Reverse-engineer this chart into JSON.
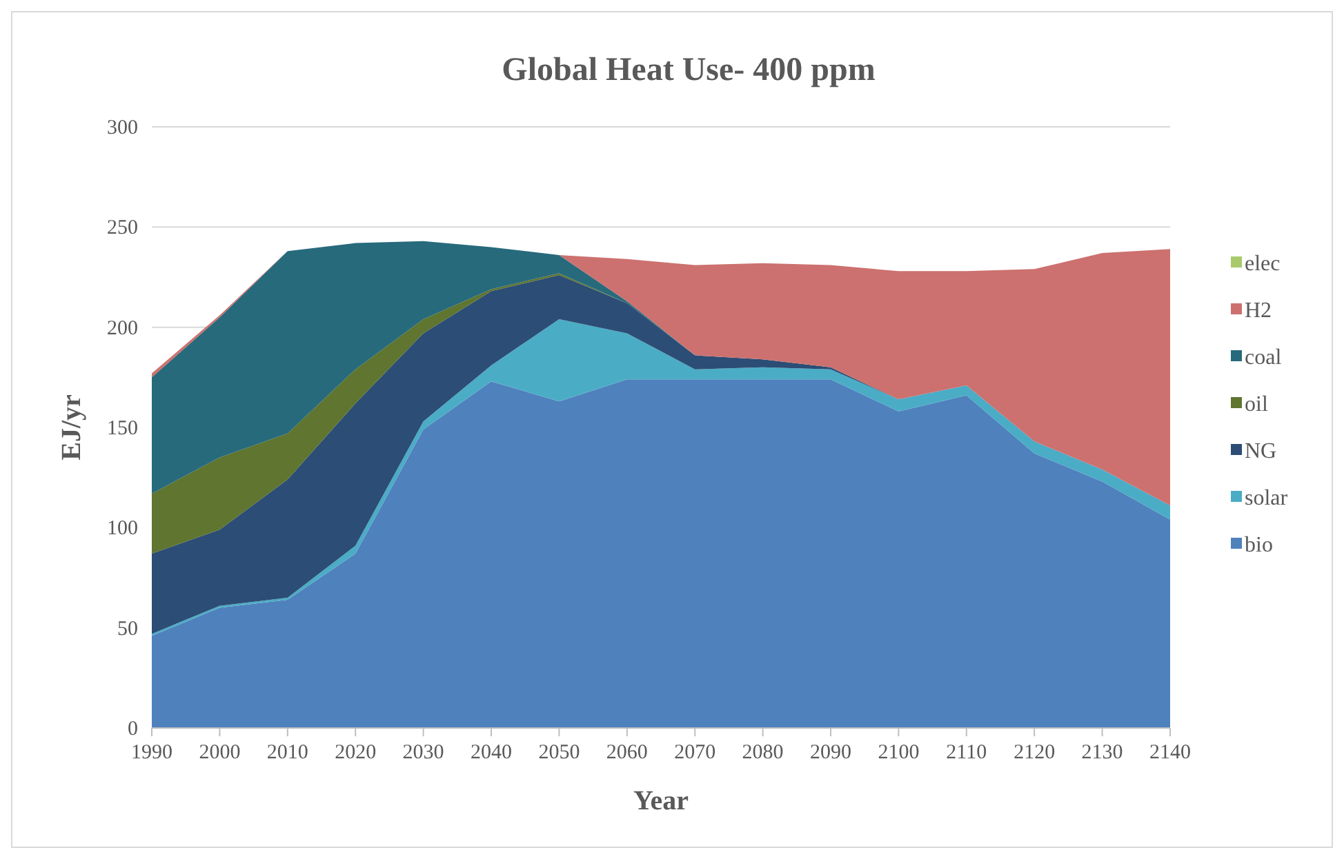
{
  "chart_data": {
    "type": "area",
    "title": "Global Heat Use- 400 ppm",
    "xlabel": "Year",
    "ylabel": "EJ/yr",
    "x": [
      1990,
      2000,
      2010,
      2020,
      2030,
      2040,
      2050,
      2060,
      2070,
      2080,
      2090,
      2100,
      2110,
      2120,
      2130,
      2140
    ],
    "stacked": true,
    "grid": "y",
    "legend": "right",
    "xlim": [
      1990,
      2140
    ],
    "xticks": [
      1990,
      2000,
      2010,
      2020,
      2030,
      2040,
      2050,
      2060,
      2070,
      2080,
      2090,
      2100,
      2110,
      2120,
      2130,
      2140
    ],
    "ylim": [
      0,
      300
    ],
    "yticks": [
      0,
      50,
      100,
      150,
      200,
      250,
      300
    ],
    "series": [
      {
        "name": "bio",
        "color": "#4f81bd",
        "values": [
          46,
          60,
          64,
          87,
          149,
          173,
          163,
          174,
          174,
          174,
          174,
          158,
          166,
          137,
          123,
          104
        ]
      },
      {
        "name": "solar",
        "color": "#4bacc6",
        "values": [
          1,
          1,
          1,
          4,
          4,
          8,
          41,
          23,
          5,
          6,
          5,
          6,
          5,
          6,
          6,
          7
        ]
      },
      {
        "name": "NG",
        "color": "#2c4d75",
        "values": [
          40,
          38,
          59,
          71,
          44,
          37,
          22,
          15,
          7,
          4,
          1,
          0,
          null,
          null,
          null,
          null
        ]
      },
      {
        "name": "oil",
        "color": "#5f7530",
        "values": [
          30,
          36,
          23,
          17,
          7,
          1,
          1,
          0,
          null,
          null,
          null,
          null,
          null,
          null,
          null,
          null
        ]
      },
      {
        "name": "coal",
        "color": "#276a7c",
        "values": [
          58,
          70,
          91,
          63,
          39,
          21,
          9,
          1,
          0,
          null,
          null,
          null,
          null,
          null,
          null,
          null
        ]
      },
      {
        "name": "H2",
        "color": "#cc716f",
        "values": [
          2,
          1,
          0,
          null,
          null,
          null,
          0,
          21,
          45,
          48,
          51,
          64,
          57,
          86,
          108,
          128
        ]
      },
      {
        "name": "elec",
        "color": "#a9c96c",
        "values": [
          null,
          null,
          null,
          null,
          null,
          null,
          null,
          null,
          null,
          null,
          null,
          null,
          null,
          null,
          null,
          null
        ]
      }
    ]
  }
}
